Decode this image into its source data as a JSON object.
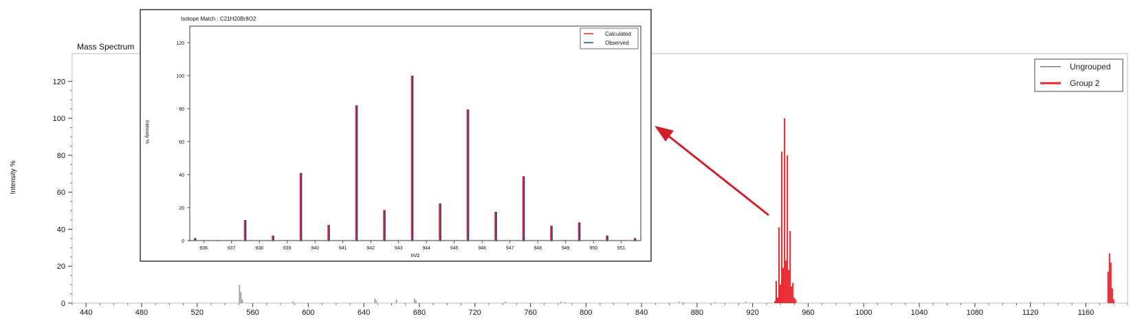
{
  "chart_data": [
    {
      "type": "bar",
      "title": "Mass Spectrum",
      "xlabel": "",
      "ylabel": "Intensity %",
      "xlim": [
        430,
        1190
      ],
      "ylim": [
        0,
        135
      ],
      "x_ticks": [
        440,
        480,
        520,
        560,
        600,
        640,
        680,
        720,
        760,
        800,
        840,
        880,
        920,
        960,
        1000,
        1040,
        1080,
        1120,
        1160
      ],
      "y_ticks": [
        0,
        20,
        40,
        60,
        80,
        100,
        120
      ],
      "legend": "top-right",
      "series": [
        {
          "name": "Ungrouped",
          "color": "#999999",
          "points": [
            {
              "x": 550.5,
              "y": 10
            },
            {
              "x": 551.5,
              "y": 6
            },
            {
              "x": 552.5,
              "y": 2
            },
            {
              "x": 589,
              "y": 1
            },
            {
              "x": 648,
              "y": 2.5
            },
            {
              "x": 649,
              "y": 1.5
            },
            {
              "x": 663.5,
              "y": 2
            },
            {
              "x": 676.5,
              "y": 2.5
            },
            {
              "x": 677.5,
              "y": 1.5
            },
            {
              "x": 742,
              "y": 0.8
            },
            {
              "x": 782,
              "y": 0.8
            },
            {
              "x": 785,
              "y": 0.6
            },
            {
              "x": 867,
              "y": 0.8
            },
            {
              "x": 870,
              "y": 0.6
            },
            {
              "x": 893,
              "y": 0.6
            },
            {
              "x": 915,
              "y": 0.8
            },
            {
              "x": 1120,
              "y": 0.8
            }
          ]
        },
        {
          "name": "Group 2",
          "color": "#e8242a",
          "points": [
            {
              "x": 936,
              "y": 1
            },
            {
              "x": 937,
              "y": 12
            },
            {
              "x": 938,
              "y": 3
            },
            {
              "x": 939,
              "y": 41
            },
            {
              "x": 940,
              "y": 10
            },
            {
              "x": 941,
              "y": 82
            },
            {
              "x": 942,
              "y": 19
            },
            {
              "x": 943,
              "y": 100
            },
            {
              "x": 944,
              "y": 23
            },
            {
              "x": 945,
              "y": 80
            },
            {
              "x": 946,
              "y": 18
            },
            {
              "x": 947,
              "y": 39
            },
            {
              "x": 948,
              "y": 9
            },
            {
              "x": 949,
              "y": 11
            },
            {
              "x": 950,
              "y": 3
            },
            {
              "x": 951,
              "y": 2
            },
            {
              "x": 1176,
              "y": 17
            },
            {
              "x": 1177,
              "y": 27
            },
            {
              "x": 1178,
              "y": 22
            },
            {
              "x": 1179,
              "y": 8
            },
            {
              "x": 1180,
              "y": 2
            }
          ]
        }
      ]
    },
    {
      "type": "bar",
      "title": "Isotope Match : C21H20Br8O2",
      "xlabel": "m/z",
      "ylabel": "Intensity %",
      "xlim": [
        935.5,
        951.7
      ],
      "ylim": [
        0,
        130
      ],
      "x_ticks": [
        936,
        937,
        938,
        939,
        940,
        941,
        942,
        943,
        944,
        945,
        946,
        947,
        948,
        949,
        950,
        951
      ],
      "y_ticks": [
        0,
        20,
        40,
        60,
        80,
        100,
        120
      ],
      "legend": "top-right",
      "x": [
        935.7,
        937.5,
        938.5,
        939.5,
        940.5,
        941.5,
        942.5,
        943.5,
        944.5,
        945.5,
        946.5,
        947.5,
        948.5,
        949.5,
        950.5,
        951.5
      ],
      "series": [
        {
          "name": "Calculated",
          "color": "#e8242a",
          "values": [
            1.5,
            12.5,
            3,
            41,
            9.5,
            82,
            18.5,
            100,
            22.5,
            79.5,
            17.5,
            39,
            9,
            11,
            3,
            1.5
          ]
        },
        {
          "name": "Observed",
          "color": "#2c3f8f",
          "values": [
            1.5,
            12.5,
            3,
            41,
            9.5,
            82,
            18.5,
            100,
            22.5,
            79.5,
            17.5,
            39,
            9,
            11,
            3,
            1.5
          ]
        }
      ]
    }
  ]
}
